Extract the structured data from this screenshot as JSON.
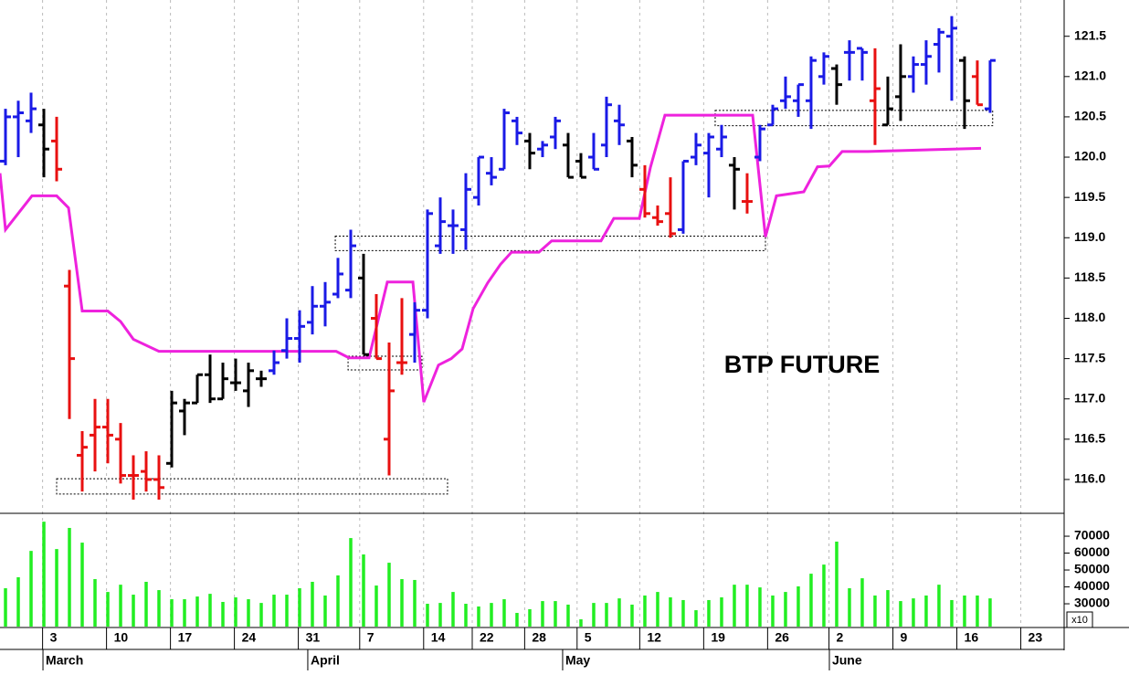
{
  "chart_data": {
    "type": "ohlc",
    "title": "BTP FUTURE",
    "x": [
      0,
      1,
      2,
      3,
      4,
      5,
      6,
      7,
      8,
      9,
      10,
      11,
      12,
      13,
      14,
      15,
      16,
      17,
      18,
      19,
      20,
      21,
      22,
      23,
      24,
      25,
      26,
      27,
      28,
      29,
      30,
      31,
      32,
      33,
      34,
      35,
      36,
      37,
      38,
      39,
      40,
      41,
      42,
      43,
      44,
      45,
      46,
      47,
      48,
      49,
      50,
      51,
      52,
      53,
      54,
      55,
      56,
      57,
      58,
      59,
      60,
      61,
      62,
      63,
      64,
      65,
      66,
      67,
      68,
      69,
      70,
      71,
      72,
      73,
      74,
      75,
      76,
      77
    ],
    "open": [
      119.95,
      120.5,
      120.45,
      120.4,
      120.2,
      118.4,
      116.3,
      116.55,
      116.65,
      116.5,
      116.05,
      116.1,
      116.0,
      116.2,
      116.85,
      116.95,
      117.3,
      117.0,
      117.2,
      117.1,
      117.25,
      117.35,
      117.6,
      117.75,
      117.95,
      118.15,
      118.3,
      118.35,
      118.5,
      118.0,
      116.5,
      117.45,
      117.8,
      118.1,
      118.9,
      119.15,
      119.1,
      119.5,
      119.8,
      119.85,
      120.45,
      120.2,
      120.1,
      120.25,
      120.15,
      119.95,
      120.0,
      120.15,
      120.45,
      120.2,
      119.6,
      119.25,
      119.3,
      119.1,
      120.0,
      120.05,
      120.1,
      119.9,
      119.45,
      120.0,
      120.4,
      120.7,
      120.7,
      120.7,
      121.0,
      121.1,
      121.3,
      121.35,
      120.7,
      120.4,
      120.75,
      121.0,
      121.15,
      121.4,
      121.5,
      121.2,
      121.0,
      120.6
    ],
    "high": [
      120.6,
      120.7,
      120.8,
      120.6,
      120.5,
      118.6,
      116.6,
      117.0,
      117.0,
      116.7,
      116.3,
      116.35,
      116.3,
      117.1,
      117.0,
      117.3,
      117.55,
      117.45,
      117.5,
      117.45,
      117.35,
      117.6,
      118.0,
      118.1,
      118.4,
      118.45,
      118.75,
      119.1,
      118.8,
      118.3,
      117.7,
      118.25,
      118.2,
      119.35,
      119.5,
      119.35,
      119.8,
      120.0,
      120.0,
      120.6,
      120.5,
      120.3,
      120.2,
      120.5,
      120.3,
      120.05,
      120.3,
      120.75,
      120.65,
      120.25,
      119.9,
      119.4,
      119.75,
      119.95,
      120.3,
      120.3,
      120.4,
      120.0,
      119.8,
      120.4,
      120.65,
      121.0,
      120.9,
      121.25,
      121.3,
      121.15,
      121.45,
      121.35,
      121.35,
      121.0,
      121.4,
      121.25,
      121.45,
      121.6,
      121.75,
      121.25,
      121.2,
      121.2
    ],
    "low": [
      119.9,
      120.0,
      120.3,
      119.75,
      119.7,
      116.75,
      115.85,
      116.1,
      116.2,
      115.95,
      115.75,
      115.85,
      115.75,
      116.15,
      116.55,
      116.95,
      116.95,
      117.0,
      117.1,
      116.9,
      117.15,
      117.3,
      117.5,
      117.45,
      117.8,
      117.9,
      118.25,
      118.25,
      117.55,
      117.5,
      116.05,
      117.3,
      117.45,
      118.0,
      118.8,
      118.8,
      118.85,
      119.4,
      119.65,
      119.85,
      120.15,
      119.85,
      120.0,
      120.1,
      119.75,
      119.75,
      119.85,
      120.0,
      120.15,
      119.75,
      119.25,
      119.15,
      119.0,
      119.05,
      119.9,
      119.5,
      120.0,
      119.35,
      119.3,
      119.95,
      120.4,
      120.6,
      120.5,
      120.35,
      120.9,
      120.65,
      120.95,
      120.95,
      120.15,
      120.4,
      120.45,
      120.8,
      120.9,
      121.05,
      120.7,
      120.35,
      120.65,
      120.55
    ],
    "close": [
      120.5,
      120.55,
      120.6,
      120.1,
      119.85,
      117.5,
      116.4,
      116.65,
      116.55,
      116.05,
      116.05,
      116.0,
      115.9,
      116.95,
      116.95,
      117.3,
      117.0,
      117.25,
      117.2,
      117.35,
      117.25,
      117.45,
      117.75,
      117.9,
      118.15,
      118.2,
      118.55,
      118.9,
      117.55,
      117.5,
      117.1,
      117.45,
      118.1,
      119.3,
      119.2,
      119.15,
      119.6,
      120.0,
      119.75,
      120.55,
      120.3,
      120.05,
      120.15,
      120.45,
      119.75,
      119.75,
      119.85,
      120.65,
      120.4,
      119.9,
      119.3,
      119.2,
      119.05,
      119.95,
      120.15,
      120.25,
      120.25,
      119.85,
      119.45,
      120.35,
      120.6,
      120.75,
      120.9,
      121.2,
      121.25,
      120.9,
      121.3,
      121.3,
      120.85,
      120.6,
      121.0,
      121.15,
      121.25,
      121.55,
      121.6,
      120.7,
      120.65,
      121.2
    ],
    "colors": [
      "#1a1ae6",
      "#1a1ae6",
      "#1a1ae6",
      "#000000",
      "#e81010",
      "#e81010",
      "#e81010",
      "#e81010",
      "#e81010",
      "#e81010",
      "#e81010",
      "#e81010",
      "#e81010",
      "#000000",
      "#000000",
      "#000000",
      "#000000",
      "#000000",
      "#000000",
      "#000000",
      "#000000",
      "#1a1ae6",
      "#1a1ae6",
      "#1a1ae6",
      "#1a1ae6",
      "#1a1ae6",
      "#1a1ae6",
      "#1a1ae6",
      "#000000",
      "#e81010",
      "#e81010",
      "#e81010",
      "#1a1ae6",
      "#1a1ae6",
      "#1a1ae6",
      "#1a1ae6",
      "#1a1ae6",
      "#1a1ae6",
      "#1a1ae6",
      "#1a1ae6",
      "#1a1ae6",
      "#000000",
      "#1a1ae6",
      "#1a1ae6",
      "#000000",
      "#000000",
      "#1a1ae6",
      "#1a1ae6",
      "#1a1ae6",
      "#000000",
      "#e81010",
      "#e81010",
      "#e81010",
      "#1a1ae6",
      "#1a1ae6",
      "#1a1ae6",
      "#1a1ae6",
      "#000000",
      "#e81010",
      "#1a1ae6",
      "#1a1ae6",
      "#1a1ae6",
      "#1a1ae6",
      "#1a1ae6",
      "#1a1ae6",
      "#000000",
      "#1a1ae6",
      "#1a1ae6",
      "#e81010",
      "#000000",
      "#000000",
      "#1a1ae6",
      "#1a1ae6",
      "#1a1ae6",
      "#1a1ae6",
      "#000000",
      "#e81010",
      "#1a1ae6"
    ],
    "line": {
      "color": "#ee22dd",
      "x": [
        -0.43,
        0,
        2.07,
        4,
        4.93,
        6,
        8,
        9,
        10,
        12,
        25.86,
        26.86,
        28.43,
        29.86,
        31.86,
        32.71,
        33.86,
        34.86,
        35.71,
        36.57,
        37.71,
        38.71,
        39.57,
        41.71,
        42.71,
        46.57,
        47.57,
        49.57,
        50.43,
        51.57,
        58.43,
        59.43,
        60.29,
        62.43,
        63.5,
        64.43,
        65.43,
        67.43,
        76.29
      ],
      "values": [
        119.8,
        119.1,
        119.52,
        119.52,
        119.37,
        118.09,
        118.09,
        117.96,
        117.74,
        117.59,
        117.59,
        117.51,
        117.51,
        118.45,
        118.45,
        116.96,
        117.42,
        117.5,
        117.62,
        118.12,
        118.44,
        118.67,
        118.82,
        118.82,
        118.96,
        118.96,
        119.24,
        119.24,
        119.87,
        120.52,
        120.52,
        119.01,
        119.52,
        119.57,
        119.88,
        119.89,
        120.07,
        120.07,
        120.11
      ]
    },
    "zones": [
      {
        "x": [
          4,
          34.57
        ],
        "y": [
          115.82,
          116.01
        ]
      },
      {
        "x": [
          25.79,
          59.43
        ],
        "y": [
          118.84,
          119.02
        ]
      },
      {
        "x": [
          26.79,
          32.57
        ],
        "y": [
          117.36,
          117.53
        ]
      },
      {
        "x": [
          55.5,
          77.2
        ],
        "y": [
          120.39,
          120.58
        ]
      }
    ],
    "xlim": [
      -0.43,
      82.79
    ],
    "xticks": [
      {
        "value": 2.9,
        "label": "3"
      },
      {
        "value": 7.9,
        "label": "10"
      },
      {
        "value": 12.9,
        "label": "17"
      },
      {
        "value": 17.9,
        "label": "24"
      },
      {
        "value": 22.9,
        "label": "31"
      },
      {
        "value": 27.7,
        "label": "7"
      },
      {
        "value": 32.7,
        "label": "14"
      },
      {
        "value": 36.5,
        "label": "22"
      },
      {
        "value": 40.6,
        "label": "28"
      },
      {
        "value": 44.7,
        "label": "5"
      },
      {
        "value": 49.6,
        "label": "12"
      },
      {
        "value": 54.6,
        "label": "19"
      },
      {
        "value": 59.6,
        "label": "26"
      },
      {
        "value": 64.4,
        "label": "2"
      },
      {
        "value": 69.4,
        "label": "9"
      },
      {
        "value": 74.4,
        "label": "16"
      },
      {
        "value": 79.4,
        "label": "23"
      }
    ],
    "months": [
      {
        "value": 2.93,
        "label": "March"
      },
      {
        "value": 23.64,
        "label": "April"
      },
      {
        "value": 43.57,
        "label": "May"
      },
      {
        "value": 64.43,
        "label": "June"
      }
    ],
    "ylim": [
      115.58,
      121.95
    ],
    "yticks": [
      {
        "value": 116,
        "label": "116.0"
      },
      116.5,
      {
        "value": 117,
        "label": "117.0"
      },
      117.5,
      {
        "value": 118,
        "label": "118.0"
      },
      118.5,
      {
        "value": 119,
        "label": "119.0"
      },
      119.5,
      {
        "value": 120,
        "label": "120.0"
      },
      120.5,
      {
        "value": 121,
        "label": "121.0"
      },
      121.5
    ],
    "volume": {
      "color": "#22ee22",
      "values": [
        39200,
        45700,
        61300,
        78600,
        62400,
        74900,
        66200,
        44600,
        37000,
        41300,
        35400,
        43000,
        38100,
        32700,
        32700,
        34300,
        35900,
        31100,
        33800,
        32700,
        30500,
        35400,
        35400,
        39200,
        43000,
        34900,
        46800,
        68900,
        59200,
        40800,
        54300,
        44600,
        44100,
        30000,
        30500,
        37000,
        30000,
        28400,
        30500,
        32700,
        24600,
        26800,
        31600,
        31600,
        29500,
        20800,
        30500,
        30500,
        33200,
        29500,
        34900,
        37000,
        33800,
        32200,
        26200,
        32200,
        33800,
        41300,
        41300,
        39700,
        34900,
        37000,
        40300,
        47800,
        53200,
        66800,
        39200,
        45100,
        34900,
        38100,
        31600,
        33200,
        34900,
        41300,
        32200,
        34900,
        34900,
        33200
      ],
      "ylim": [
        16500,
        83000
      ],
      "yticks": [
        30000,
        40000,
        50000,
        60000,
        70000
      ],
      "multiplier_label": "x10"
    }
  }
}
